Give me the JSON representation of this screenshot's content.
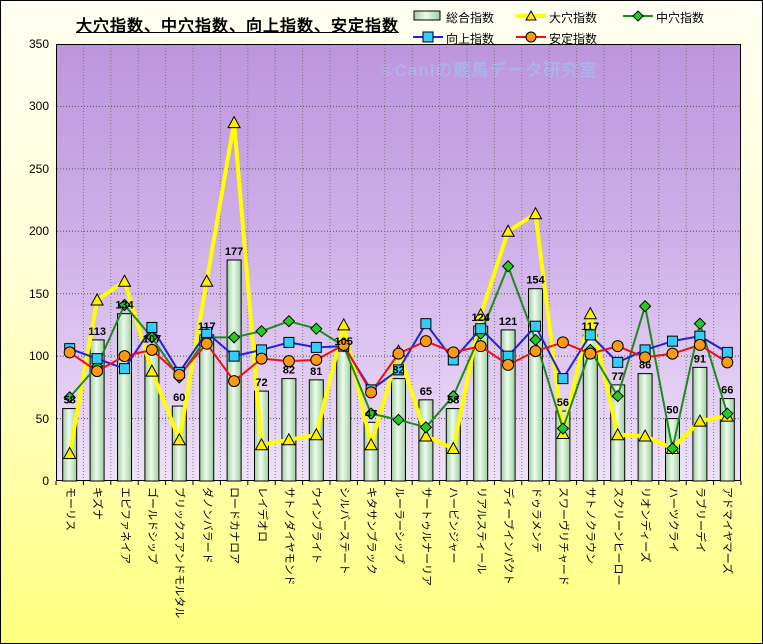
{
  "title": "大穴指数、中穴指数、向上指数、安定指数",
  "watermark": "©Caniの競馬データ研究室",
  "legend": {
    "items": [
      {
        "label": "総合指数",
        "swatch": "bar"
      },
      {
        "label": "大穴指数",
        "swatch": "triangle"
      },
      {
        "label": "中穴指数",
        "swatch": "diamond"
      },
      {
        "label": "向上指数",
        "swatch": "square"
      },
      {
        "label": "安定指数",
        "swatch": "circle"
      }
    ]
  },
  "colors": {
    "bar_fill_edge": "#9ccf9c",
    "bar_fill_center": "#eefaee",
    "bar_outline": "#000000",
    "ooana_line": "#ffff00",
    "ooana_marker": "#ffee00",
    "chuuana_line": "#1d8a1d",
    "chuuana_marker": "#22cc22",
    "koujou_line": "#2222dd",
    "koujou_marker": "#33ccff",
    "antei_line": "#ee1111",
    "antei_marker": "#ff9911",
    "plot_bg_top": "#bd95de",
    "plot_bg_bottom": "#eee1f9",
    "page_bg_bottom": "#ffff7e"
  },
  "y_axis": {
    "ticks": [
      "0",
      "50",
      "100",
      "150",
      "200",
      "250",
      "300",
      "350"
    ]
  },
  "chart_data": {
    "type": "bar",
    "title": "大穴指数、中穴指数、向上指数、安定指数",
    "xlabel": "",
    "ylabel": "",
    "ylim": [
      0,
      350
    ],
    "ytick_step": 50,
    "grid": true,
    "legend_position": "top-right",
    "categories": [
      "モーリス",
      "キズナ",
      "エピファネイア",
      "ゴールドシップ",
      "ブリックスアンドモルタル",
      "ダノンバラード",
      "ロードカナロア",
      "レイデオロ",
      "サトノダイヤモンド",
      "ウインブライト",
      "シルバーステート",
      "キタサンブラック",
      "ルーラーシップ",
      "サートゥルナーリア",
      "ハービンジャー",
      "リアルスティール",
      "ディープインパクト",
      "ドゥラメンテ",
      "スワーヴリチャード",
      "サトノクラウン",
      "スクリーンヒーロー",
      "リオンディーズ",
      "ハーツクライ",
      "ラブリーデイ",
      "アドマイヤマーズ"
    ],
    "series": [
      {
        "name": "総合指数",
        "type": "bar",
        "marker": "none",
        "values": [
          58,
          113,
          134,
          107,
          60,
          117,
          177,
          72,
          82,
          81,
          105,
          47,
          82,
          65,
          58,
          124,
          121,
          154,
          56,
          117,
          77,
          86,
          50,
          91,
          66
        ],
        "data_labels": true
      },
      {
        "name": "大穴指数",
        "type": "line",
        "marker": "triangle",
        "values": [
          22,
          145,
          160,
          88,
          33,
          160,
          287,
          29,
          33,
          37,
          125,
          29,
          104,
          36,
          26,
          133,
          200,
          214,
          38,
          134,
          37,
          36,
          26,
          48,
          52
        ]
      },
      {
        "name": "中穴指数",
        "type": "line",
        "marker": "diamond",
        "values": [
          67,
          92,
          141,
          115,
          83,
          115,
          115,
          120,
          128,
          122,
          108,
          54,
          49,
          43,
          68,
          118,
          172,
          113,
          42,
          105,
          68,
          140,
          26,
          126,
          54
        ]
      },
      {
        "name": "向上指数",
        "type": "line",
        "marker": "square",
        "values": [
          106,
          98,
          90,
          123,
          87,
          119,
          100,
          105,
          111,
          107,
          108,
          73,
          89,
          126,
          97,
          122,
          100,
          124,
          82,
          117,
          95,
          105,
          112,
          116,
          103
        ]
      },
      {
        "name": "安定指数",
        "type": "line",
        "marker": "circle",
        "values": [
          103,
          88,
          100,
          105,
          85,
          110,
          80,
          98,
          96,
          97,
          109,
          71,
          102,
          112,
          103,
          108,
          93,
          104,
          111,
          102,
          108,
          99,
          102,
          109,
          95
        ]
      }
    ]
  }
}
